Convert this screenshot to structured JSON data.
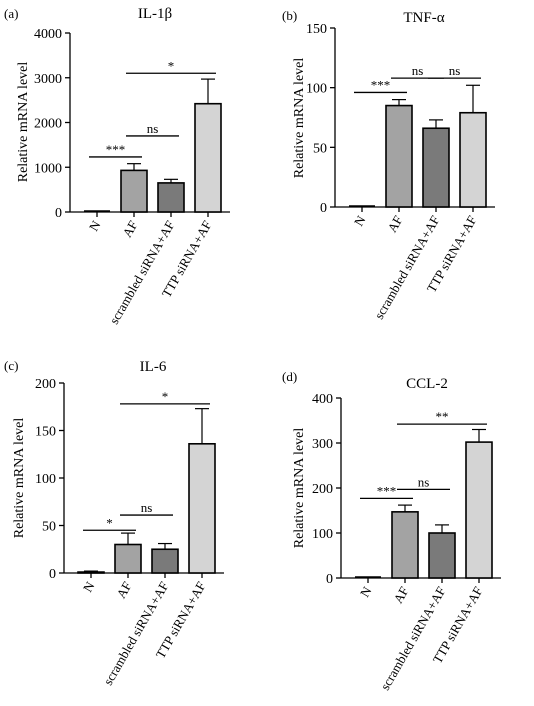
{
  "colors": {
    "N": "#ffffff",
    "AF": "#a3a3a3",
    "scrambled": "#7a7a7a",
    "TTP": "#d4d4d4",
    "stroke": "#000000"
  },
  "chart_data": [
    {
      "type": "bar",
      "panel_label": "(a)",
      "title": "IL-1β",
      "ylabel": "Relative mRNA level",
      "categories": [
        "N",
        "AF",
        "scrambled siRNA+AF",
        "TTP siRNA+AF"
      ],
      "values": [
        0,
        930,
        650,
        2420
      ],
      "errors": [
        0,
        150,
        80,
        550
      ],
      "ylim": [
        0,
        4000
      ],
      "yticks": [
        0,
        1000,
        2000,
        3000,
        4000
      ],
      "significance": [
        {
          "from": 0,
          "to": 1,
          "label": "***",
          "y": 1230
        },
        {
          "from": 1,
          "to": 2,
          "label": "ns",
          "y": 1700
        },
        {
          "from": 1,
          "to": 3,
          "label": "*",
          "y": 3100
        }
      ]
    },
    {
      "type": "bar",
      "panel_label": "(b)",
      "title": "TNF-α",
      "ylabel": "Relative mRNA level",
      "categories": [
        "N",
        "AF",
        "scrambled siRNA+AF",
        "TTP siRNA+AF"
      ],
      "values": [
        0.5,
        85,
        66,
        79
      ],
      "errors": [
        0.5,
        5,
        7,
        23
      ],
      "ylim": [
        0,
        150
      ],
      "yticks": [
        0,
        50,
        100,
        150
      ],
      "significance": [
        {
          "from": 0,
          "to": 1,
          "label": "***",
          "y": 96
        },
        {
          "from": 1,
          "to": 2,
          "label": "ns",
          "y": 108
        },
        {
          "from": 2,
          "to": 3,
          "label": "ns",
          "y": 108
        }
      ]
    },
    {
      "type": "bar",
      "panel_label": "(c)",
      "title": "IL-6",
      "ylabel": "Relative mRNA level",
      "categories": [
        "N",
        "AF",
        "scrambled siRNA+AF",
        "TTP siRNA+AF"
      ],
      "values": [
        1,
        30,
        25,
        136
      ],
      "errors": [
        1,
        12,
        6,
        37
      ],
      "ylim": [
        0,
        200
      ],
      "yticks": [
        0,
        50,
        100,
        150,
        200
      ],
      "significance": [
        {
          "from": 0,
          "to": 1,
          "label": "*",
          "y": 45
        },
        {
          "from": 1,
          "to": 2,
          "label": "ns",
          "y": 61
        },
        {
          "from": 1,
          "to": 3,
          "label": "*",
          "y": 178
        }
      ]
    },
    {
      "type": "bar",
      "panel_label": "(d)",
      "title": "CCL-2",
      "ylabel": "Relative mRNA level",
      "categories": [
        "N",
        "AF",
        "scrambled siRNA+AF",
        "TTP siRNA+AF"
      ],
      "values": [
        0,
        147,
        100,
        302
      ],
      "errors": [
        0,
        15,
        18,
        28
      ],
      "ylim": [
        0,
        400
      ],
      "yticks": [
        0,
        100,
        200,
        300,
        400
      ],
      "significance": [
        {
          "from": 0,
          "to": 1,
          "label": "***",
          "y": 177
        },
        {
          "from": 1,
          "to": 2,
          "label": "ns",
          "y": 197
        },
        {
          "from": 1,
          "to": 3,
          "label": "**",
          "y": 342
        }
      ]
    }
  ]
}
